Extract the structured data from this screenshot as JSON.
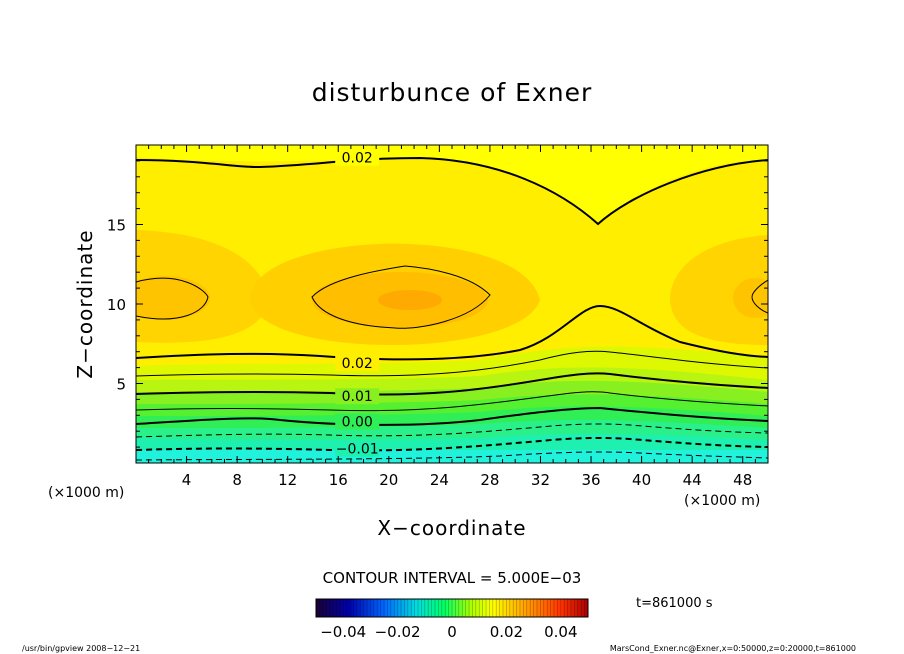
{
  "chart_data": {
    "type": "heatmap",
    "title": "disturbunce of Exner",
    "xlabel": "X−coordinate",
    "ylabel": "Z−coordinate",
    "x_unit_left": "(×1000 m)",
    "x_unit_right": "(×1000 m)",
    "xlim": [
      0,
      50
    ],
    "ylim": [
      0,
      20
    ],
    "x_ticks": [
      4,
      8,
      12,
      16,
      20,
      24,
      28,
      32,
      36,
      40,
      44,
      48
    ],
    "y_ticks": [
      5,
      10,
      15
    ],
    "contour_interval_text": "CONTOUR INTERVAL = 5.000E−03",
    "contour_labels": [
      {
        "text": "0.02",
        "x": 17.5,
        "z": 19.2
      },
      {
        "text": "0.02",
        "x": 17.5,
        "z": 6.3
      },
      {
        "text": "0.01",
        "x": 17.5,
        "z": 4.2
      },
      {
        "text": "0.00",
        "x": 17.5,
        "z": 2.6
      },
      {
        "text": "−0.01",
        "x": 17.5,
        "z": 0.9
      }
    ],
    "colorbar": {
      "ticks": [
        "−0.04",
        "−0.02",
        "0",
        "0.02",
        "0.04"
      ],
      "range": [
        -0.05,
        0.05
      ]
    },
    "time_label": "t=861000 s",
    "footer_left": "/usr/bin/gpview   2008−12−21",
    "footer_right": "MarsCond_Exner.nc@Exner,x=0:50000,z=0:20000,t=861000"
  }
}
